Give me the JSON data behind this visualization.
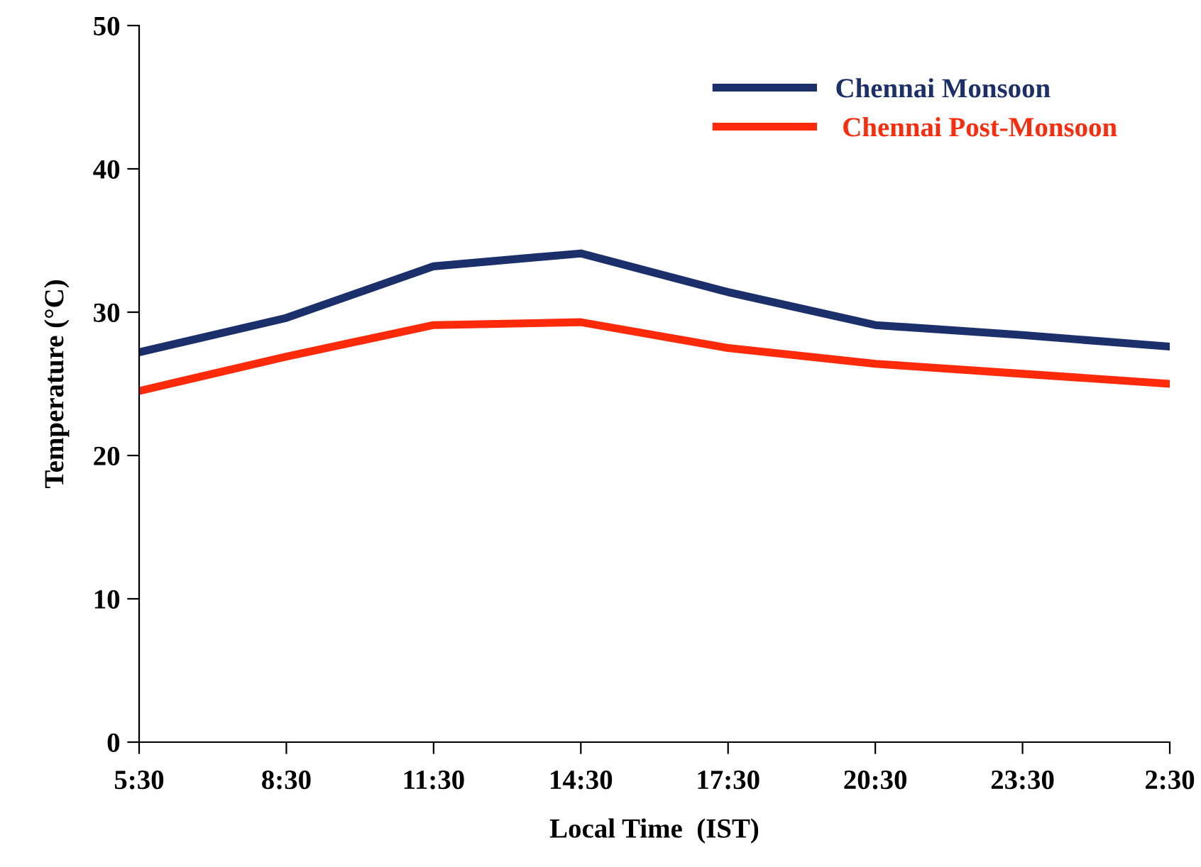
{
  "chart_data": {
    "type": "line",
    "xlabel": "Local Time  (IST)",
    "ylabel": "Temperature (°C)",
    "categories": [
      "5:30",
      "8:30",
      "11:30",
      "14:30",
      "17:30",
      "20:30",
      "23:30",
      "2:30"
    ],
    "series": [
      {
        "name": "Chennai Monsoon",
        "color": "#1b2f6b",
        "values": [
          27.2,
          29.6,
          33.2,
          34.1,
          31.4,
          29.1,
          28.4,
          27.6
        ]
      },
      {
        "name": " Chennai Post-Monsoon",
        "color": "#ff2a0a",
        "values": [
          24.5,
          26.9,
          29.1,
          29.3,
          27.5,
          26.4,
          25.7,
          25.0
        ]
      }
    ],
    "ylim": [
      0,
      50
    ],
    "yticks": [
      0,
      10,
      20,
      30,
      40,
      50
    ],
    "grid": false,
    "legend": "top right",
    "marker": "none",
    "line_style": "solid"
  }
}
